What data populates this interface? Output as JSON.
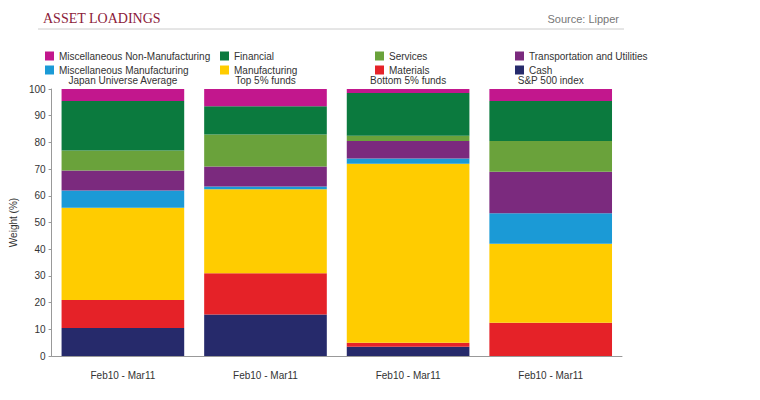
{
  "chart_data": {
    "type": "bar",
    "title": "ASSET LOADINGS",
    "subtitle": "Source: Lipper",
    "y_label": "Weight (%)",
    "categories": [
      "Feb10 - Mar11",
      "Feb10 - Mar11",
      "Feb10 - Mar11",
      "Feb10 - Mar11"
    ],
    "annotations": [
      "Japan Universe Average",
      "Top 5% funds",
      "Bottom 5% funds",
      "S&P 500 index"
    ],
    "stacked": true,
    "grid": false,
    "ylim": [
      0,
      100
    ],
    "yticks": [
      0,
      10,
      20,
      30,
      40,
      50,
      60,
      70,
      80,
      90,
      100
    ],
    "series": [
      {
        "name": "Cash",
        "color": "#262a6b",
        "values": [
          10.5,
          15.5,
          3.5,
          0
        ]
      },
      {
        "name": "Materials",
        "color": "#e52228",
        "values": [
          10.5,
          15.5,
          1.5,
          12.5
        ]
      },
      {
        "name": "Manufacturing",
        "color": "#ffcc00",
        "values": [
          34.5,
          31.5,
          67,
          29.5
        ]
      },
      {
        "name": "Miscellaneous Manufacturing",
        "color": "#1b9ad6",
        "values": [
          6.5,
          1,
          2,
          11.5
        ]
      },
      {
        "name": "Transportation and Utilities",
        "color": "#7b2a7e",
        "values": [
          7.5,
          7.5,
          6.5,
          15.5
        ]
      },
      {
        "name": "Services",
        "color": "#6aa23b",
        "values": [
          7.5,
          12,
          2,
          11.5
        ]
      },
      {
        "name": "Financial",
        "color": "#0b7a3e",
        "values": [
          18.5,
          10.5,
          16,
          15
        ]
      },
      {
        "name": "Miscellaneous Non-Manufacturing",
        "color": "#c2178d",
        "values": [
          4.5,
          6.5,
          1.5,
          4.5
        ]
      }
    ]
  }
}
